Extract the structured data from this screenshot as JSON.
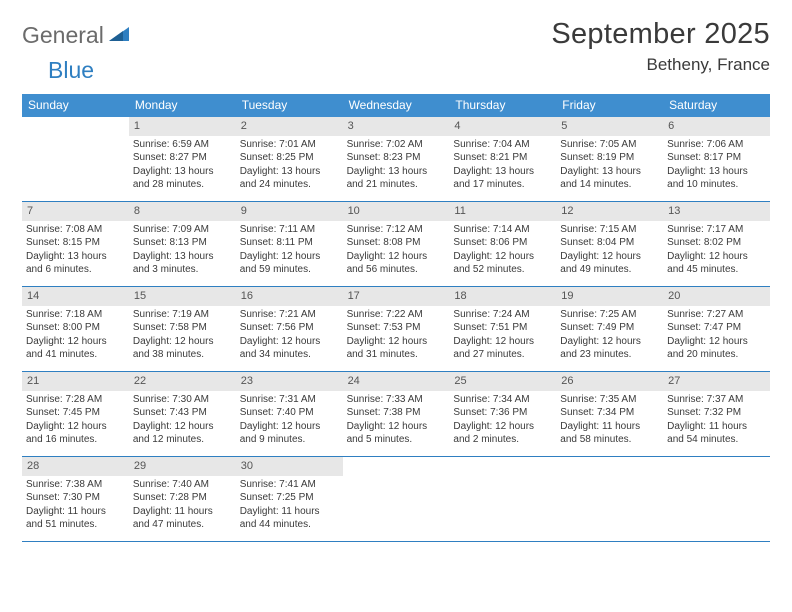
{
  "logo": {
    "part1": "General",
    "part2": "Blue",
    "accent_color": "#2f7fc1",
    "muted_color": "#6b6b6b"
  },
  "title": "September 2025",
  "location": "Betheny, France",
  "weekdays": [
    "Sunday",
    "Monday",
    "Tuesday",
    "Wednesday",
    "Thursday",
    "Friday",
    "Saturday"
  ],
  "header_bg": "#3f8ecf",
  "daynum_bg": "#e7e7e7",
  "rule_color": "#2f7fc1",
  "weeks": [
    [
      {
        "empty": true
      },
      {
        "n": "1",
        "sunrise": "Sunrise: 6:59 AM",
        "sunset": "Sunset: 8:27 PM",
        "daylight1": "Daylight: 13 hours",
        "daylight2": "and 28 minutes."
      },
      {
        "n": "2",
        "sunrise": "Sunrise: 7:01 AM",
        "sunset": "Sunset: 8:25 PM",
        "daylight1": "Daylight: 13 hours",
        "daylight2": "and 24 minutes."
      },
      {
        "n": "3",
        "sunrise": "Sunrise: 7:02 AM",
        "sunset": "Sunset: 8:23 PM",
        "daylight1": "Daylight: 13 hours",
        "daylight2": "and 21 minutes."
      },
      {
        "n": "4",
        "sunrise": "Sunrise: 7:04 AM",
        "sunset": "Sunset: 8:21 PM",
        "daylight1": "Daylight: 13 hours",
        "daylight2": "and 17 minutes."
      },
      {
        "n": "5",
        "sunrise": "Sunrise: 7:05 AM",
        "sunset": "Sunset: 8:19 PM",
        "daylight1": "Daylight: 13 hours",
        "daylight2": "and 14 minutes."
      },
      {
        "n": "6",
        "sunrise": "Sunrise: 7:06 AM",
        "sunset": "Sunset: 8:17 PM",
        "daylight1": "Daylight: 13 hours",
        "daylight2": "and 10 minutes."
      }
    ],
    [
      {
        "n": "7",
        "sunrise": "Sunrise: 7:08 AM",
        "sunset": "Sunset: 8:15 PM",
        "daylight1": "Daylight: 13 hours",
        "daylight2": "and 6 minutes."
      },
      {
        "n": "8",
        "sunrise": "Sunrise: 7:09 AM",
        "sunset": "Sunset: 8:13 PM",
        "daylight1": "Daylight: 13 hours",
        "daylight2": "and 3 minutes."
      },
      {
        "n": "9",
        "sunrise": "Sunrise: 7:11 AM",
        "sunset": "Sunset: 8:11 PM",
        "daylight1": "Daylight: 12 hours",
        "daylight2": "and 59 minutes."
      },
      {
        "n": "10",
        "sunrise": "Sunrise: 7:12 AM",
        "sunset": "Sunset: 8:08 PM",
        "daylight1": "Daylight: 12 hours",
        "daylight2": "and 56 minutes."
      },
      {
        "n": "11",
        "sunrise": "Sunrise: 7:14 AM",
        "sunset": "Sunset: 8:06 PM",
        "daylight1": "Daylight: 12 hours",
        "daylight2": "and 52 minutes."
      },
      {
        "n": "12",
        "sunrise": "Sunrise: 7:15 AM",
        "sunset": "Sunset: 8:04 PM",
        "daylight1": "Daylight: 12 hours",
        "daylight2": "and 49 minutes."
      },
      {
        "n": "13",
        "sunrise": "Sunrise: 7:17 AM",
        "sunset": "Sunset: 8:02 PM",
        "daylight1": "Daylight: 12 hours",
        "daylight2": "and 45 minutes."
      }
    ],
    [
      {
        "n": "14",
        "sunrise": "Sunrise: 7:18 AM",
        "sunset": "Sunset: 8:00 PM",
        "daylight1": "Daylight: 12 hours",
        "daylight2": "and 41 minutes."
      },
      {
        "n": "15",
        "sunrise": "Sunrise: 7:19 AM",
        "sunset": "Sunset: 7:58 PM",
        "daylight1": "Daylight: 12 hours",
        "daylight2": "and 38 minutes."
      },
      {
        "n": "16",
        "sunrise": "Sunrise: 7:21 AM",
        "sunset": "Sunset: 7:56 PM",
        "daylight1": "Daylight: 12 hours",
        "daylight2": "and 34 minutes."
      },
      {
        "n": "17",
        "sunrise": "Sunrise: 7:22 AM",
        "sunset": "Sunset: 7:53 PM",
        "daylight1": "Daylight: 12 hours",
        "daylight2": "and 31 minutes."
      },
      {
        "n": "18",
        "sunrise": "Sunrise: 7:24 AM",
        "sunset": "Sunset: 7:51 PM",
        "daylight1": "Daylight: 12 hours",
        "daylight2": "and 27 minutes."
      },
      {
        "n": "19",
        "sunrise": "Sunrise: 7:25 AM",
        "sunset": "Sunset: 7:49 PM",
        "daylight1": "Daylight: 12 hours",
        "daylight2": "and 23 minutes."
      },
      {
        "n": "20",
        "sunrise": "Sunrise: 7:27 AM",
        "sunset": "Sunset: 7:47 PM",
        "daylight1": "Daylight: 12 hours",
        "daylight2": "and 20 minutes."
      }
    ],
    [
      {
        "n": "21",
        "sunrise": "Sunrise: 7:28 AM",
        "sunset": "Sunset: 7:45 PM",
        "daylight1": "Daylight: 12 hours",
        "daylight2": "and 16 minutes."
      },
      {
        "n": "22",
        "sunrise": "Sunrise: 7:30 AM",
        "sunset": "Sunset: 7:43 PM",
        "daylight1": "Daylight: 12 hours",
        "daylight2": "and 12 minutes."
      },
      {
        "n": "23",
        "sunrise": "Sunrise: 7:31 AM",
        "sunset": "Sunset: 7:40 PM",
        "daylight1": "Daylight: 12 hours",
        "daylight2": "and 9 minutes."
      },
      {
        "n": "24",
        "sunrise": "Sunrise: 7:33 AM",
        "sunset": "Sunset: 7:38 PM",
        "daylight1": "Daylight: 12 hours",
        "daylight2": "and 5 minutes."
      },
      {
        "n": "25",
        "sunrise": "Sunrise: 7:34 AM",
        "sunset": "Sunset: 7:36 PM",
        "daylight1": "Daylight: 12 hours",
        "daylight2": "and 2 minutes."
      },
      {
        "n": "26",
        "sunrise": "Sunrise: 7:35 AM",
        "sunset": "Sunset: 7:34 PM",
        "daylight1": "Daylight: 11 hours",
        "daylight2": "and 58 minutes."
      },
      {
        "n": "27",
        "sunrise": "Sunrise: 7:37 AM",
        "sunset": "Sunset: 7:32 PM",
        "daylight1": "Daylight: 11 hours",
        "daylight2": "and 54 minutes."
      }
    ],
    [
      {
        "n": "28",
        "sunrise": "Sunrise: 7:38 AM",
        "sunset": "Sunset: 7:30 PM",
        "daylight1": "Daylight: 11 hours",
        "daylight2": "and 51 minutes."
      },
      {
        "n": "29",
        "sunrise": "Sunrise: 7:40 AM",
        "sunset": "Sunset: 7:28 PM",
        "daylight1": "Daylight: 11 hours",
        "daylight2": "and 47 minutes."
      },
      {
        "n": "30",
        "sunrise": "Sunrise: 7:41 AM",
        "sunset": "Sunset: 7:25 PM",
        "daylight1": "Daylight: 11 hours",
        "daylight2": "and 44 minutes."
      },
      {
        "empty": true
      },
      {
        "empty": true
      },
      {
        "empty": true
      },
      {
        "empty": true
      }
    ]
  ]
}
